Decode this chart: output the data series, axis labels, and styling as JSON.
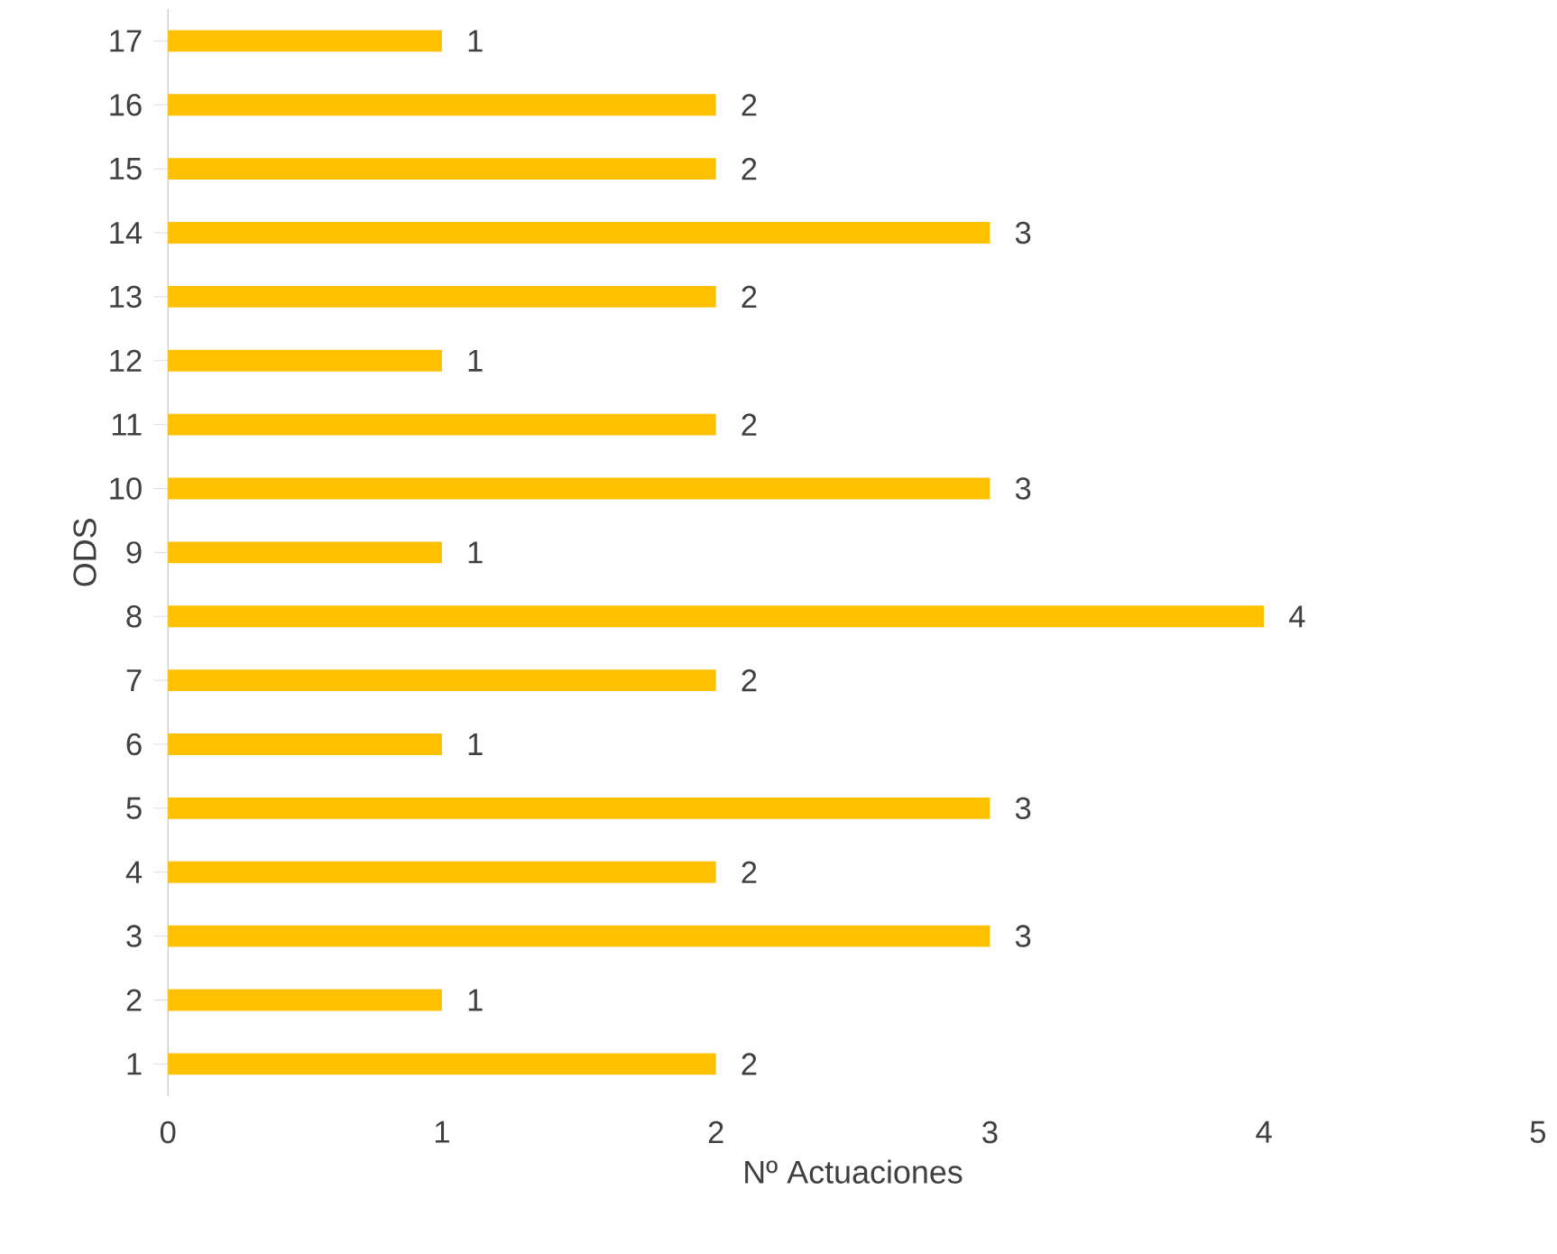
{
  "chart_data": {
    "type": "bar",
    "orientation": "horizontal",
    "ylabel": "ODS",
    "xlabel": "Nº Actuaciones",
    "categories": [
      "17",
      "16",
      "15",
      "14",
      "13",
      "12",
      "11",
      "10",
      "9",
      "8",
      "7",
      "6",
      "5",
      "4",
      "3",
      "2",
      "1"
    ],
    "values": [
      1,
      2,
      2,
      3,
      2,
      1,
      2,
      3,
      1,
      4,
      2,
      1,
      3,
      2,
      3,
      1,
      2
    ],
    "color": "#ffc000",
    "xlim": [
      0,
      5
    ],
    "xticks": [
      0,
      1,
      2,
      3,
      4,
      5
    ],
    "grid": false,
    "data_labels": true
  }
}
